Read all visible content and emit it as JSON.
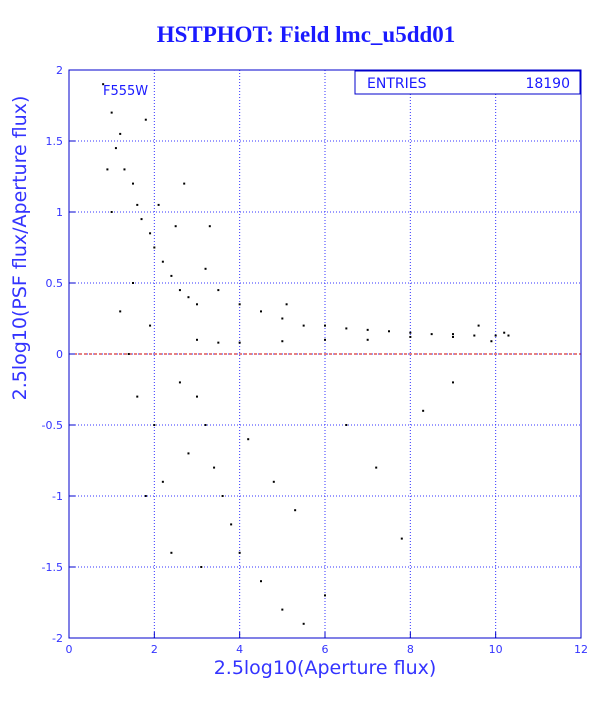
{
  "colors": {
    "axis": "#0000cc",
    "grid": "#3333ff",
    "text": "#1a1aff",
    "points": "#000000",
    "zero_line": "#cc0000",
    "background": "#ffffff"
  },
  "chart_data": {
    "type": "scatter",
    "title": "HSTPHOT: Field lmc_u5dd01",
    "xlabel": "2.5log10(Aperture flux)",
    "ylabel": "2.5log10(PSF flux/Aperture flux)",
    "xlim": [
      0,
      12
    ],
    "ylim": [
      -2,
      2
    ],
    "x_ticks": [
      0,
      2,
      4,
      6,
      8,
      10,
      12
    ],
    "y_ticks": [
      -2,
      -1.5,
      -1,
      -0.5,
      0,
      0.5,
      1,
      1.5,
      2
    ],
    "grid": true,
    "reference_line_y": 0,
    "annotation": "F555W",
    "stats_box": {
      "label": "ENTRIES",
      "value": "18190",
      "placement": "top-right"
    },
    "entries": 18190,
    "series": [
      {
        "distribution": "dense horizontal ridge near y = 0.1 from x = 2.5 to 10.3; fan of scattered points at low x widening to y from -2 to 2; sparse tail below zero",
        "points": [
          [
            0.8,
            1.9
          ],
          [
            1.0,
            1.7
          ],
          [
            1.2,
            1.55
          ],
          [
            1.3,
            1.3
          ],
          [
            1.5,
            1.2
          ],
          [
            1.6,
            1.05
          ],
          [
            1.7,
            0.95
          ],
          [
            1.9,
            0.85
          ],
          [
            2.0,
            0.75
          ],
          [
            2.2,
            0.65
          ],
          [
            2.4,
            0.55
          ],
          [
            2.6,
            0.45
          ],
          [
            2.8,
            0.4
          ],
          [
            3.0,
            0.35
          ],
          [
            0.9,
            1.3
          ],
          [
            1.1,
            1.45
          ],
          [
            1.8,
            1.65
          ],
          [
            2.1,
            1.05
          ],
          [
            2.5,
            0.9
          ],
          [
            3.2,
            0.6
          ],
          [
            3.5,
            0.45
          ],
          [
            4.0,
            0.35
          ],
          [
            4.5,
            0.3
          ],
          [
            5.0,
            0.25
          ],
          [
            5.5,
            0.2
          ],
          [
            6.0,
            0.2
          ],
          [
            6.5,
            0.18
          ],
          [
            7.0,
            0.17
          ],
          [
            7.5,
            0.16
          ],
          [
            8.0,
            0.15
          ],
          [
            8.5,
            0.14
          ],
          [
            9.0,
            0.14
          ],
          [
            9.5,
            0.13
          ],
          [
            10.0,
            0.13
          ],
          [
            10.3,
            0.13
          ],
          [
            3.0,
            0.1
          ],
          [
            3.5,
            0.08
          ],
          [
            4.0,
            0.08
          ],
          [
            5.0,
            0.09
          ],
          [
            6.0,
            0.1
          ],
          [
            7.0,
            0.1
          ],
          [
            8.0,
            0.12
          ],
          [
            9.0,
            0.12
          ],
          [
            3.0,
            -0.3
          ],
          [
            3.2,
            -0.5
          ],
          [
            3.4,
            -0.8
          ],
          [
            3.6,
            -1.0
          ],
          [
            3.8,
            -1.2
          ],
          [
            4.0,
            -1.4
          ],
          [
            4.5,
            -1.6
          ],
          [
            5.0,
            -1.8
          ],
          [
            5.5,
            -1.9
          ],
          [
            6.0,
            -1.7
          ],
          [
            2.6,
            -0.2
          ],
          [
            2.8,
            -0.7
          ],
          [
            3.1,
            -1.5
          ],
          [
            4.2,
            -0.6
          ],
          [
            4.8,
            -0.9
          ],
          [
            5.3,
            -1.1
          ],
          [
            6.5,
            -0.5
          ],
          [
            7.2,
            -0.8
          ],
          [
            7.8,
            -1.3
          ],
          [
            8.3,
            -0.4
          ],
          [
            9.0,
            -0.2
          ],
          [
            2.2,
            -0.9
          ],
          [
            2.4,
            -1.4
          ],
          [
            2.0,
            -0.5
          ],
          [
            1.9,
            0.2
          ],
          [
            1.5,
            0.5
          ],
          [
            1.2,
            0.3
          ],
          [
            1.0,
            1.0
          ],
          [
            2.7,
            1.2
          ],
          [
            3.3,
            0.9
          ],
          [
            5.1,
            0.35
          ],
          [
            9.6,
            0.2
          ],
          [
            10.2,
            0.15
          ],
          [
            9.9,
            0.09
          ],
          [
            1.4,
            0.0
          ],
          [
            1.6,
            -0.3
          ],
          [
            1.8,
            -1.0
          ]
        ]
      }
    ]
  }
}
